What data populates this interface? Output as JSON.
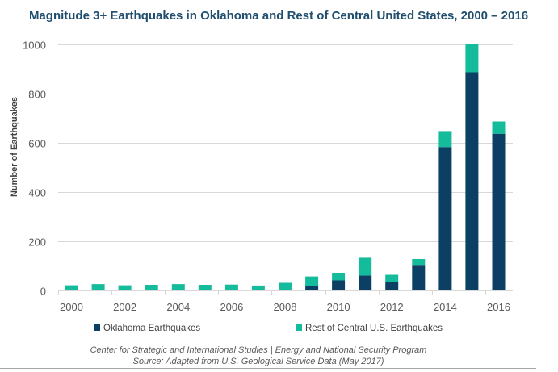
{
  "chart_data": {
    "type": "bar",
    "stacked": true,
    "title": "Magnitude 3+ Earthquakes in Oklahoma and Rest of Central United States,  2000 – 2016",
    "xlabel": "",
    "ylabel": "Number of Earthquakes",
    "ylim": [
      0,
      1000
    ],
    "yticks": [
      0,
      200,
      400,
      600,
      800,
      1000
    ],
    "grid": true,
    "categories": [
      "2000",
      "2001",
      "2002",
      "2003",
      "2004",
      "2005",
      "2006",
      "2007",
      "2008",
      "2009",
      "2010",
      "2011",
      "2012",
      "2013",
      "2014",
      "2015",
      "2016"
    ],
    "xtick_labels": [
      "2000",
      "2002",
      "2004",
      "2006",
      "2008",
      "2010",
      "2012",
      "2014",
      "2016"
    ],
    "series": [
      {
        "name": "Oklahoma Earthquakes",
        "color": "#0b4064",
        "values": [
          0,
          0,
          0,
          0,
          0,
          0,
          0,
          0,
          0,
          18,
          41,
          61,
          34,
          101,
          583,
          887,
          637
        ]
      },
      {
        "name": "Rest of Central U.S. Earthquakes",
        "color": "#14bc9c",
        "values": [
          21,
          26,
          21,
          23,
          26,
          23,
          24,
          20,
          31,
          39,
          31,
          72,
          30,
          27,
          65,
          113,
          50
        ]
      }
    ],
    "legend_position": "bottom",
    "footer": [
      "Center for Strategic and International Studies | Energy and National Security Program",
      "Source: Adapted from U.S. Geological Service Data (May 2017)"
    ]
  }
}
